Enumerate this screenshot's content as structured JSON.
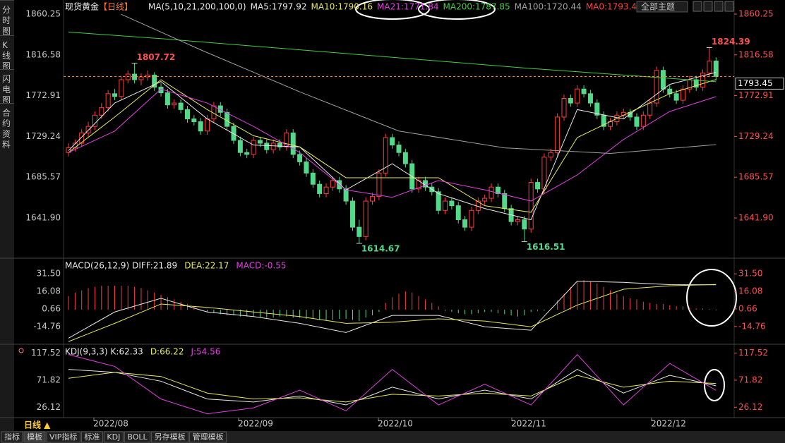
{
  "chart_data": {
    "type": "candlestick",
    "title": "现货黄金",
    "period": "【日线】",
    "theme_button": "全部主题",
    "side_tabs": [
      "分时图",
      "K线图",
      "闪电图",
      "合约资料"
    ],
    "legend": [
      "MA(5,10,21,200,100,0)",
      "MA5:1797.92",
      "MA10:1790.16",
      "MA21:1771.84",
      "MA200:1787.85",
      "MA100:1720.44",
      "MA0:1793.4"
    ],
    "legend_colors": [
      "#e8e8e8",
      "#e8e8e8",
      "#e8e85a",
      "#e040e0",
      "#40d040",
      "#a0a0a0",
      "#ff4040"
    ],
    "up_color": "#ff3c3c",
    "down_color": "#54d88a",
    "ylim": [
      1601.85,
      1860.25
    ],
    "yticks": [
      1860.25,
      1816.58,
      1772.91,
      1729.24,
      1685.57,
      {
        "value": 1641.9,
        "label": "1641.90"
      }
    ],
    "candles": [
      [
        1712,
        1722,
        1708,
        1717
      ],
      [
        1717,
        1726,
        1713,
        1722
      ],
      [
        1722,
        1737,
        1718,
        1733
      ],
      [
        1733,
        1745,
        1729,
        1740
      ],
      [
        1740,
        1756,
        1736,
        1752
      ],
      [
        1752,
        1765,
        1748,
        1760
      ],
      [
        1760,
        1779,
        1756,
        1775
      ],
      [
        1775,
        1780,
        1768,
        1772
      ],
      [
        1772,
        1794,
        1768,
        1790
      ],
      [
        1790,
        1800,
        1786,
        1796
      ],
      [
        1796,
        1807.72,
        1786,
        1790
      ],
      [
        1790,
        1797,
        1784,
        1793
      ],
      [
        1793,
        1800,
        1789,
        1795
      ],
      [
        1795,
        1798,
        1778,
        1782
      ],
      [
        1782,
        1786,
        1772,
        1776
      ],
      [
        1776,
        1780,
        1759,
        1763
      ],
      [
        1763,
        1769,
        1759,
        1765
      ],
      [
        1765,
        1769,
        1754,
        1758
      ],
      [
        1758,
        1762,
        1744,
        1748
      ],
      [
        1748,
        1752,
        1741,
        1745
      ],
      [
        1745,
        1749,
        1731,
        1735
      ],
      [
        1735,
        1752,
        1731,
        1748
      ],
      [
        1748,
        1766,
        1744,
        1762
      ],
      [
        1762,
        1766,
        1751,
        1755
      ],
      [
        1755,
        1759,
        1736,
        1740
      ],
      [
        1740,
        1744,
        1721,
        1725
      ],
      [
        1725,
        1729,
        1708,
        1712
      ],
      [
        1712,
        1716,
        1706,
        1710
      ],
      [
        1710,
        1729,
        1706,
        1725
      ],
      [
        1725,
        1729,
        1718,
        1722
      ],
      [
        1722,
        1726,
        1711,
        1715
      ],
      [
        1715,
        1726,
        1711,
        1722
      ],
      [
        1722,
        1726,
        1714,
        1718
      ],
      [
        1718,
        1737,
        1714,
        1733
      ],
      [
        1733,
        1737,
        1706,
        1710
      ],
      [
        1710,
        1714,
        1698,
        1702
      ],
      [
        1702,
        1706,
        1686,
        1690
      ],
      [
        1690,
        1694,
        1674,
        1678
      ],
      [
        1678,
        1682,
        1664,
        1668
      ],
      [
        1668,
        1679,
        1664,
        1675
      ],
      [
        1675,
        1686,
        1671,
        1682
      ],
      [
        1682,
        1686,
        1669,
        1673
      ],
      [
        1673,
        1677,
        1656,
        1660
      ],
      [
        1660,
        1664,
        1628,
        1632
      ],
      [
        1632,
        1640,
        1614.67,
        1622
      ],
      [
        1622,
        1664,
        1618,
        1660
      ],
      [
        1660,
        1669,
        1656,
        1665
      ],
      [
        1665,
        1694,
        1661,
        1690
      ],
      [
        1690,
        1732,
        1686,
        1728
      ],
      [
        1728,
        1732,
        1716,
        1720
      ],
      [
        1720,
        1724,
        1708,
        1712
      ],
      [
        1712,
        1716,
        1696,
        1700
      ],
      [
        1700,
        1704,
        1669,
        1673
      ],
      [
        1673,
        1686,
        1669,
        1682
      ],
      [
        1682,
        1686,
        1671,
        1675
      ],
      [
        1675,
        1679,
        1666,
        1670
      ],
      [
        1670,
        1674,
        1646,
        1650
      ],
      [
        1650,
        1664,
        1646,
        1660
      ],
      [
        1660,
        1664,
        1651,
        1655
      ],
      [
        1655,
        1659,
        1636,
        1640
      ],
      [
        1640,
        1644,
        1628,
        1632
      ],
      [
        1632,
        1654,
        1628,
        1650
      ],
      [
        1650,
        1664,
        1646,
        1660
      ],
      [
        1660,
        1667,
        1656,
        1663
      ],
      [
        1663,
        1679,
        1659,
        1675
      ],
      [
        1675,
        1679,
        1664,
        1668
      ],
      [
        1668,
        1672,
        1648,
        1652
      ],
      [
        1652,
        1656,
        1634,
        1638
      ],
      [
        1638,
        1644,
        1634,
        1640
      ],
      [
        1640,
        1644,
        1616.51,
        1630
      ],
      [
        1630,
        1684,
        1626,
        1680
      ],
      [
        1680,
        1684,
        1669,
        1673
      ],
      [
        1673,
        1711,
        1669,
        1707
      ],
      [
        1707,
        1716,
        1703,
        1712
      ],
      [
        1712,
        1754,
        1708,
        1750
      ],
      [
        1750,
        1774,
        1746,
        1770
      ],
      [
        1770,
        1774,
        1761,
        1765
      ],
      [
        1765,
        1784,
        1761,
        1780
      ],
      [
        1780,
        1784,
        1771,
        1775
      ],
      [
        1775,
        1779,
        1761,
        1765
      ],
      [
        1765,
        1769,
        1748,
        1752
      ],
      [
        1752,
        1756,
        1736,
        1740
      ],
      [
        1740,
        1749,
        1736,
        1745
      ],
      [
        1745,
        1756,
        1741,
        1752
      ],
      [
        1752,
        1759,
        1748,
        1755
      ],
      [
        1755,
        1759,
        1746,
        1750
      ],
      [
        1750,
        1754,
        1736,
        1740
      ],
      [
        1740,
        1756,
        1736,
        1752
      ],
      [
        1752,
        1769,
        1748,
        1765
      ],
      [
        1765,
        1804,
        1761,
        1800
      ],
      [
        1800,
        1804,
        1776,
        1780
      ],
      [
        1780,
        1784,
        1771,
        1775
      ],
      [
        1775,
        1779,
        1764,
        1768
      ],
      [
        1768,
        1784,
        1764,
        1780
      ],
      [
        1780,
        1794,
        1776,
        1790
      ],
      [
        1790,
        1794,
        1778,
        1782
      ],
      [
        1782,
        1801,
        1778,
        1797
      ],
      [
        1797,
        1824.39,
        1793,
        1810
      ],
      [
        1810,
        1814,
        1789,
        1793.45
      ]
    ],
    "lines": [
      {
        "color": "#e8e8e8",
        "x": [
          0,
          7,
          14,
          21,
          28,
          35,
          42,
          49,
          56,
          63,
          70,
          77,
          84,
          91,
          98
        ],
        "values": [
          1714,
          1765,
          1788,
          1748,
          1720,
          1718,
          1672,
          1700,
          1668,
          1652,
          1640,
          1758,
          1748,
          1785,
          1797.92
        ]
      },
      {
        "color": "#e8e85a",
        "x": [
          0,
          7,
          14,
          21,
          28,
          35,
          42,
          49,
          56,
          63,
          70,
          77,
          84,
          91,
          98
        ],
        "values": [
          1712,
          1750,
          1790,
          1758,
          1730,
          1718,
          1685,
          1685,
          1685,
          1655,
          1648,
          1728,
          1752,
          1775,
          1790.16
        ]
      },
      {
        "color": "#e040e0",
        "x": [
          0,
          7,
          14,
          21,
          28,
          35,
          42,
          49,
          56,
          63,
          70,
          77,
          84,
          91,
          98
        ],
        "values": [
          1712,
          1735,
          1780,
          1765,
          1740,
          1712,
          1672,
          1664,
          1682,
          1672,
          1660,
          1688,
          1726,
          1756,
          1771.84
        ]
      },
      {
        "color": "#40d040",
        "x": [
          0,
          14,
          28,
          42,
          56,
          70,
          84,
          98
        ],
        "values": [
          1841,
          1834,
          1826,
          1818,
          1810,
          1802,
          1795,
          1787.85
        ]
      },
      {
        "color": "#a0a0a0",
        "x": [
          8,
          20,
          35,
          50,
          66,
          82,
          98
        ],
        "values": [
          1860,
          1822,
          1777,
          1735,
          1717,
          1711,
          1720.44
        ]
      }
    ],
    "annotations": [
      {
        "index": 10,
        "field": 1,
        "text": 1807.72,
        "color": "#ff5050"
      },
      {
        "index": 44,
        "field": 2,
        "text": 1614.67,
        "color": "#54d88a"
      },
      {
        "index": 69,
        "field": 2,
        "text": 1616.51,
        "color": "#54d88a"
      },
      {
        "index": 97,
        "field": 1,
        "text": 1824.39,
        "color": "#ff5050"
      }
    ],
    "macd": {
      "title": "MACD(26,12,9)",
      "labels": [
        "DIFF:21.89",
        "DEA:22.17",
        "MACD:-0.55"
      ],
      "label_colors": [
        "#e8e8e8",
        "#e8e85a",
        "#e040e0"
      ],
      "ylim": [
        -29.1,
        44
      ],
      "yticks": [
        {
          "value": 31.5,
          "label": "31.50"
        },
        16.08,
        0.66,
        -14.76
      ],
      "hist": [
        12,
        15,
        17,
        19,
        20,
        21,
        21,
        21,
        21,
        21,
        20,
        19,
        17,
        15,
        13,
        11,
        9,
        7,
        5,
        3,
        -1,
        -2,
        -3,
        -4,
        -5,
        -5,
        -6,
        -6,
        -6,
        -7,
        -7,
        -7,
        -6,
        -6,
        -7,
        -7,
        -8,
        -8,
        -9,
        -9,
        -9,
        -8,
        -8,
        -9,
        -10,
        -7,
        -5,
        -2,
        6,
        11,
        14,
        16,
        15,
        12,
        9,
        6,
        3,
        -1,
        -2,
        -3,
        -4,
        -4,
        -3,
        -2,
        -2,
        -3,
        -4,
        -5,
        -6,
        -5,
        -2,
        -1,
        -1,
        1,
        8,
        14,
        20,
        24,
        26,
        25,
        23,
        20,
        17,
        14,
        12,
        10,
        9,
        7,
        6,
        5,
        5,
        4,
        3,
        3,
        2,
        1,
        1,
        0.5,
        -0.55
      ],
      "lines": [
        {
          "color": "#e8e8e8",
          "x": [
            0,
            7,
            14,
            21,
            28,
            35,
            42,
            49,
            56,
            63,
            70,
            77,
            84,
            91,
            98
          ],
          "values": [
            -25,
            -2,
            10,
            -2,
            -6,
            -12,
            -20,
            -5,
            -5,
            -15,
            -18,
            25,
            24,
            22,
            21.89
          ]
        },
        {
          "color": "#e8e85a",
          "x": [
            0,
            7,
            14,
            21,
            28,
            35,
            42,
            49,
            56,
            63,
            70,
            77,
            84,
            91,
            98
          ],
          "values": [
            -28,
            -12,
            5,
            2,
            -2,
            -6,
            -12,
            -11,
            -8,
            -10,
            -15,
            4,
            18,
            21,
            22.17
          ]
        }
      ]
    },
    "kdj": {
      "title": "KDJ(9,3,3)",
      "labels": [
        "K:62.33",
        "D:66.22",
        "J:54.56"
      ],
      "label_colors": [
        "#e8e8e8",
        "#e8e85a",
        "#e040e0"
      ],
      "ylim": [
        11,
        130
      ],
      "yticks": [
        117.52,
        71.82,
        26.12
      ],
      "lines": [
        {
          "color": "#e8e8e8",
          "x": [
            0,
            7,
            14,
            21,
            28,
            35,
            42,
            49,
            56,
            63,
            70,
            77,
            84,
            91,
            98
          ],
          "values": [
            90,
            85,
            70,
            40,
            35,
            45,
            30,
            60,
            40,
            55,
            40,
            90,
            50,
            80,
            62.33
          ]
        },
        {
          "color": "#e8e85a",
          "x": [
            0,
            7,
            14,
            21,
            28,
            35,
            42,
            49,
            56,
            63,
            70,
            77,
            84,
            91,
            98
          ],
          "values": [
            75,
            85,
            78,
            50,
            40,
            42,
            35,
            48,
            45,
            50,
            45,
            80,
            60,
            70,
            66.22
          ]
        },
        {
          "color": "#e040e0",
          "x": [
            0,
            7,
            14,
            21,
            28,
            35,
            42,
            49,
            56,
            63,
            70,
            77,
            84,
            91,
            98
          ],
          "values": [
            115,
            95,
            40,
            15,
            25,
            55,
            20,
            90,
            30,
            65,
            30,
            115,
            30,
            100,
            54.56
          ]
        }
      ]
    },
    "x_labels": [
      "2022/08",
      "2022/09",
      "2022/10",
      "2022/11",
      "2022/12"
    ],
    "period_button": "日线 ▲",
    "toolbar": [
      "指标",
      "模板",
      "VIP指标",
      "标准",
      "KDJ",
      "BOLL",
      "另存模板",
      "管理模板"
    ]
  }
}
